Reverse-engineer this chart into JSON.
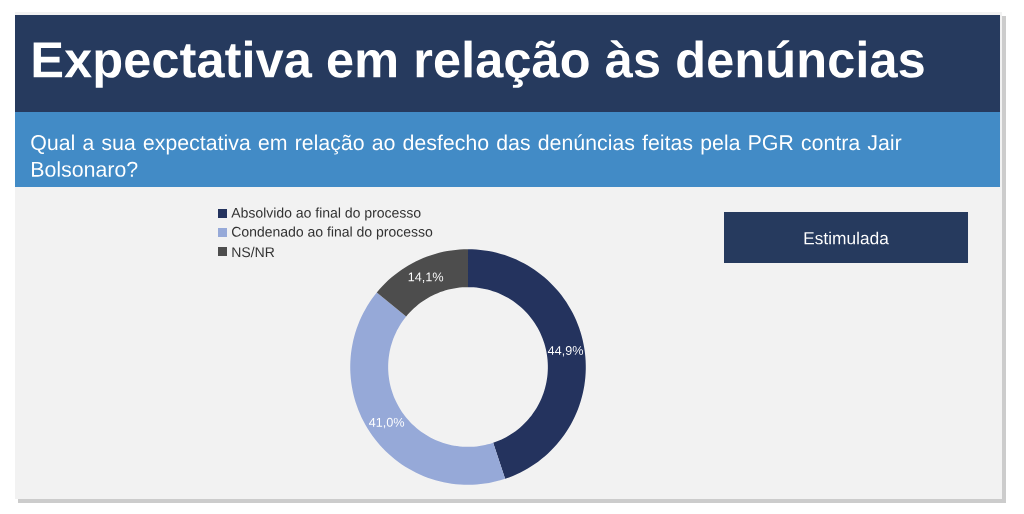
{
  "chart_data": {
    "type": "donut",
    "title": "Expectativa em relação às denúncias",
    "subtitle": "Qual a sua expectativa em relação ao desfecho das denúncias feitas pela PGR contra Jair Bolsonaro?",
    "annotations": [
      "Estimulada"
    ],
    "categories": [
      "Absolvido ao final do processo",
      "Condenado ao final do processo",
      "NS/NR"
    ],
    "values": [
      44.9,
      41.0,
      14.1
    ],
    "value_labels": [
      "44,9%",
      "41,0%",
      "14,1%"
    ],
    "colors": [
      "#24335e",
      "#96a9d8",
      "#4d4d4d"
    ],
    "legend": "top left"
  }
}
